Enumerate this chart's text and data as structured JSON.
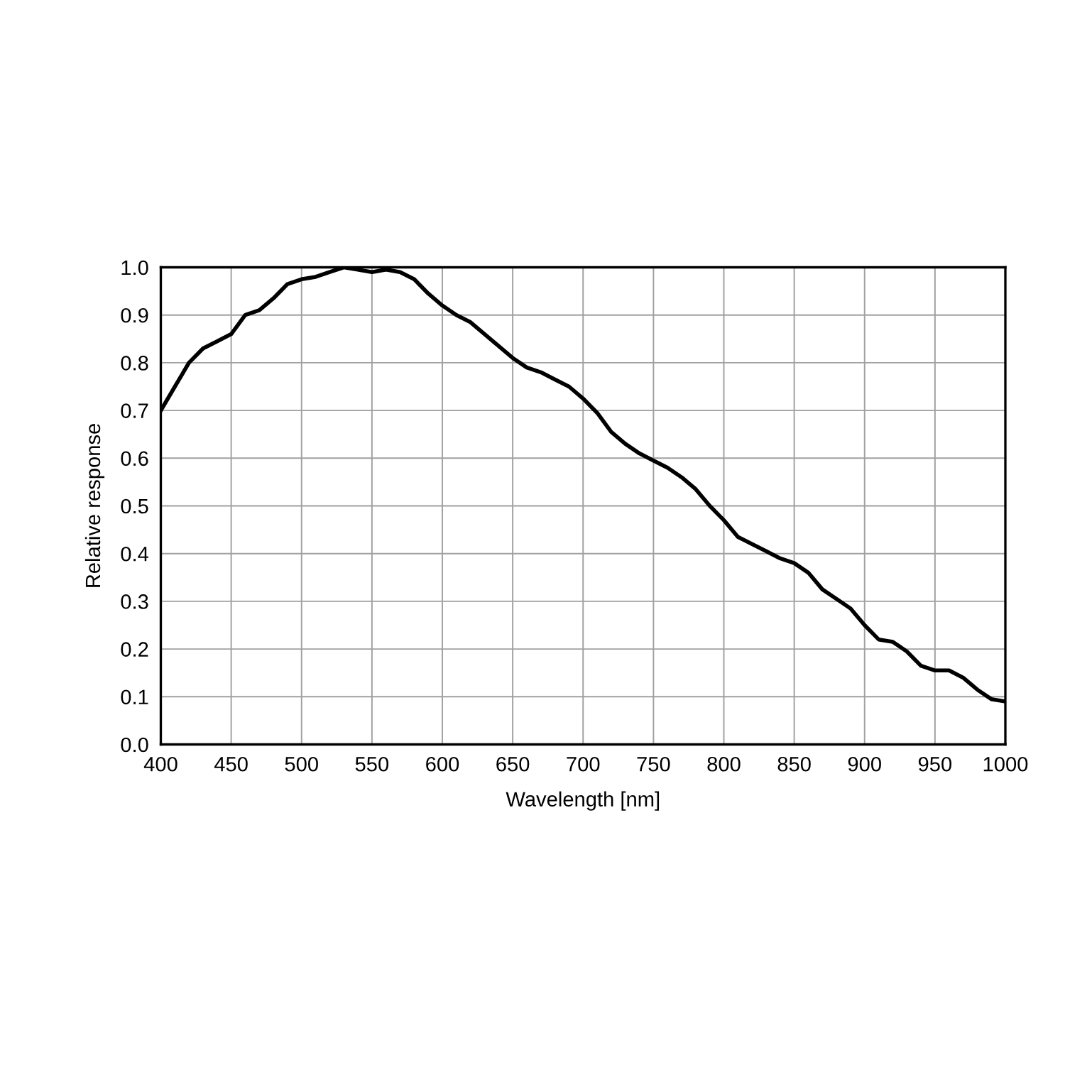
{
  "chart_data": {
    "type": "line",
    "xlabel": "Wavelength [nm]",
    "ylabel": "Relative response",
    "x": [
      400,
      410,
      420,
      430,
      440,
      450,
      460,
      470,
      480,
      490,
      500,
      510,
      520,
      530,
      540,
      550,
      560,
      570,
      580,
      590,
      600,
      610,
      620,
      630,
      640,
      650,
      660,
      670,
      680,
      690,
      700,
      710,
      720,
      730,
      740,
      750,
      760,
      770,
      780,
      790,
      800,
      810,
      820,
      830,
      840,
      850,
      860,
      870,
      880,
      890,
      900,
      910,
      920,
      930,
      940,
      950,
      960,
      970,
      980,
      990,
      1000
    ],
    "series": [
      {
        "color": "#000000",
        "values": [
          0.7,
          0.75,
          0.8,
          0.83,
          0.845,
          0.86,
          0.9,
          0.91,
          0.935,
          0.965,
          0.975,
          0.98,
          0.99,
          1.0,
          0.995,
          0.99,
          0.995,
          0.99,
          0.975,
          0.945,
          0.92,
          0.9,
          0.885,
          0.86,
          0.835,
          0.81,
          0.79,
          0.78,
          0.765,
          0.75,
          0.725,
          0.695,
          0.655,
          0.63,
          0.61,
          0.595,
          0.58,
          0.56,
          0.535,
          0.5,
          0.47,
          0.435,
          0.42,
          0.405,
          0.39,
          0.38,
          0.36,
          0.325,
          0.305,
          0.285,
          0.25,
          0.22,
          0.215,
          0.195,
          0.165,
          0.155,
          0.155,
          0.14,
          0.115,
          0.095,
          0.09
        ]
      }
    ],
    "xlim": [
      400,
      1000
    ],
    "xticks": [
      400,
      450,
      500,
      550,
      600,
      650,
      700,
      750,
      800,
      850,
      900,
      950,
      1000
    ],
    "ylim": [
      0,
      1
    ],
    "yticks": [
      {
        "value": 0,
        "label": "0.0"
      },
      {
        "value": 0.1,
        "label": "0.1"
      },
      {
        "value": 0.2,
        "label": "0.2"
      },
      {
        "value": 0.3,
        "label": "0.3"
      },
      {
        "value": 0.4,
        "label": "0.4"
      },
      {
        "value": 0.5,
        "label": "0.5"
      },
      {
        "value": 0.6,
        "label": "0.6"
      },
      {
        "value": 0.7,
        "label": "0.7"
      },
      {
        "value": 0.8,
        "label": "0.8"
      },
      {
        "value": 0.9,
        "label": "0.9"
      },
      {
        "value": 1,
        "label": "1.0"
      }
    ],
    "grid": true,
    "marker": "none",
    "line_style": "solid",
    "legend": false
  }
}
